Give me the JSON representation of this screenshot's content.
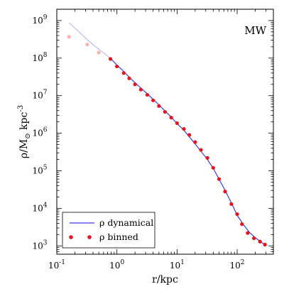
{
  "chart_data": {
    "type": "line",
    "xscale": "log",
    "yscale": "log",
    "xlim": [
      0.1,
      400
    ],
    "ylim": [
      600,
      2000000000
    ],
    "xlabel": "r/kpc",
    "ylabel": "ρ/M",
    "ylabel_sub": "⊙",
    "ylabel_unit": " kpc",
    "ylabel_sup": "-3",
    "annotation": "MW",
    "x_ticks": [
      {
        "value": 0.1,
        "base": "10",
        "exp": "-1"
      },
      {
        "value": 1,
        "base": "10",
        "exp": "0"
      },
      {
        "value": 10,
        "base": "10",
        "exp": "1"
      },
      {
        "value": 100,
        "base": "10",
        "exp": "2"
      }
    ],
    "y_ticks": [
      {
        "value": 1000,
        "base": "10",
        "exp": "3"
      },
      {
        "value": 10000,
        "base": "10",
        "exp": "4"
      },
      {
        "value": 100000,
        "base": "10",
        "exp": "5"
      },
      {
        "value": 1000000,
        "base": "10",
        "exp": "6"
      },
      {
        "value": 10000000,
        "base": "10",
        "exp": "7"
      },
      {
        "value": 100000000,
        "base": "10",
        "exp": "8"
      },
      {
        "value": 1000000000,
        "base": "10",
        "exp": "9"
      }
    ],
    "legend_position": "bottom-left",
    "legend": [
      {
        "label": "ρ dynamical",
        "kind": "line"
      },
      {
        "label": "ρ binned",
        "kind": "points"
      }
    ],
    "series": [
      {
        "name": "ρ dynamical",
        "style": "line",
        "color": "#3b3bf0",
        "faded_color": "#b7b7f3",
        "faded_below_x": 0.78,
        "x": [
          0.16,
          0.2,
          0.25,
          0.32,
          0.4,
          0.5,
          0.63,
          0.8,
          1.0,
          1.3,
          1.6,
          2.0,
          2.5,
          3.2,
          4.0,
          5.0,
          6.3,
          8.0,
          10,
          13,
          16,
          20,
          25,
          32,
          40,
          50,
          63,
          80,
          100,
          130,
          160,
          200,
          250,
          300
        ],
        "y": [
          880000000,
          630000000,
          450000000,
          310000000,
          230000000,
          170000000,
          130000000,
          95000000,
          65000000,
          44000000,
          31000000,
          22000000,
          16000000,
          11200000,
          8000000,
          5700000,
          3900000,
          2700000,
          1800000,
          1200000,
          800000,
          520000,
          330000,
          200000,
          115000,
          60000,
          30000,
          14000,
          6500,
          3500,
          2300,
          1650,
          1250,
          1050
        ]
      },
      {
        "name": "ρ binned",
        "style": "points",
        "color": "#e8131b",
        "faded_color": "#f5b5b0",
        "faded_below_x": 0.7,
        "x": [
          0.16,
          0.32,
          0.5,
          0.78,
          1.0,
          1.3,
          1.6,
          2.0,
          2.5,
          3.2,
          4.0,
          5.0,
          6.3,
          8.0,
          10,
          13,
          16,
          20,
          25,
          32,
          40,
          50,
          63,
          80,
          100,
          120,
          150,
          190,
          240,
          290
        ],
        "y": [
          370000000,
          230000000,
          140000000,
          95000000,
          60000000,
          40000000,
          29000000,
          20000000,
          14500000,
          10500000,
          7500000,
          5300000,
          3700000,
          2600000,
          1850000,
          1300000,
          900000,
          580000,
          360000,
          220000,
          120000,
          60000,
          28000,
          13000,
          7000,
          3800,
          2200,
          1600,
          1300,
          1080
        ]
      }
    ]
  }
}
